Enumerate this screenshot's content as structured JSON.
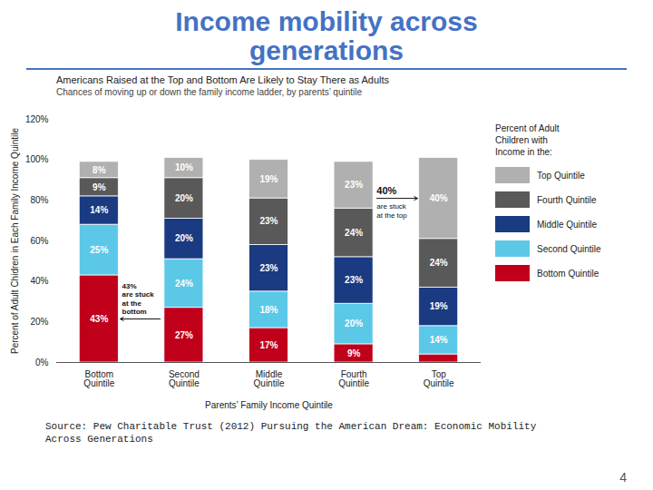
{
  "chart_data": {
    "type": "bar",
    "stacked": true,
    "data_labels": true,
    "legend": "right",
    "grid": false,
    "title": "Income mobility across\ngenerations",
    "subtitle": "Americans Raised at the Top and Bottom Are Likely to Stay There as Adults",
    "description": "Chances of moving up or down the family income ladder, by parents’ quintile",
    "xlabel": "Parents’ Family Income Quintile",
    "ylabel": "Percent of Adult Chidren in Each Family Income Quintile",
    "categories": [
      "Bottom\nQuintile",
      "Second\nQuintile",
      "Middle\nQuintile",
      "Fourth\nQuintile",
      "Top\nQuintile"
    ],
    "series": [
      {
        "name": "Bottom Quintile",
        "color": "#c0001a",
        "values": [
          43,
          27,
          17,
          9,
          4
        ],
        "value_labels": [
          "43%",
          "27%",
          "17%",
          "9%",
          null
        ]
      },
      {
        "name": "Second Quintile",
        "color": "#5bc8e8",
        "values": [
          25,
          24,
          18,
          20,
          14
        ],
        "value_labels": [
          "25%",
          "24%",
          "18%",
          "20%",
          "14%"
        ]
      },
      {
        "name": "Middle Quintile",
        "color": "#1a3a82",
        "values": [
          14,
          20,
          23,
          23,
          19
        ],
        "value_labels": [
          "14%",
          "20%",
          "23%",
          "23%",
          "19%"
        ]
      },
      {
        "name": "Fourth Quintile",
        "color": "#595959",
        "values": [
          9,
          20,
          23,
          24,
          24
        ],
        "value_labels": [
          "9%",
          "20%",
          "23%",
          "24%",
          "24%"
        ]
      },
      {
        "name": "Top Quintile",
        "color": "#b0b0b0",
        "values": [
          8,
          10,
          19,
          23,
          40
        ],
        "value_labels": [
          "8%",
          "10%",
          "19%",
          "23%",
          "40%"
        ]
      }
    ],
    "ylim": [
      0,
      120
    ],
    "yticks": [
      {
        "value": 0,
        "label": "0%"
      },
      {
        "value": 20,
        "label": "20%"
      },
      {
        "value": 40,
        "label": "40%"
      },
      {
        "value": 60,
        "label": "60%"
      },
      {
        "value": 80,
        "label": "80%"
      },
      {
        "value": 100,
        "label": "100%"
      },
      {
        "value": 120,
        "label": "120%"
      }
    ],
    "legend_title": "Percent of Adult\nChildren with\nIncome in the:",
    "annotations": [
      "43%\nare stuck\nat the\nbottom",
      "40%",
      "are stuck\nat the top"
    ],
    "source": "Source: Pew Charitable Trust (2012) Pursuing the American Dream: Economic Mobility\nAcross Generations",
    "page_number": "4"
  }
}
